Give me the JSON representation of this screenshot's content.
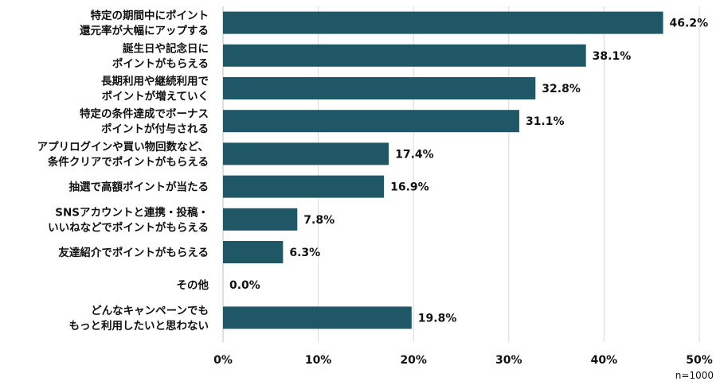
{
  "chart_data": {
    "type": "bar",
    "orientation": "horizontal",
    "bar_color": "#1f5767",
    "categories": [
      [
        "特定の期間中にポイント",
        "還元率が大幅にアップする"
      ],
      [
        "誕生日や記念日に",
        "ポイントがもらえる"
      ],
      [
        "長期利用や継続利用で",
        "ポイントが増えていく"
      ],
      [
        "特定の条件達成でボーナス",
        "ポイントが付与される"
      ],
      [
        "アプリログインや買い物回数など、",
        "条件クリアでポイントがもらえる"
      ],
      [
        "抽選で高額ポイントが当たる"
      ],
      [
        "SNSアカウントと連携・投稿・",
        "いいねなどでポイントがもらえる"
      ],
      [
        "友達紹介でポイントがもらえる"
      ],
      [
        "その他"
      ],
      [
        "どんなキャンペーンでも",
        "もっと利用したいと思わない"
      ]
    ],
    "values": [
      46.2,
      38.1,
      32.8,
      31.1,
      17.4,
      16.9,
      7.8,
      6.3,
      0.0,
      19.8
    ],
    "value_labels": [
      "46.2%",
      "38.1%",
      "32.8%",
      "31.1%",
      "17.4%",
      "16.9%",
      "7.8%",
      "6.3%",
      "0.0%",
      "19.8%"
    ],
    "xlim": [
      0,
      50
    ],
    "xticks": [
      0,
      10,
      20,
      30,
      40,
      50
    ],
    "xtick_labels": [
      "0%",
      "10%",
      "20%",
      "30%",
      "40%",
      "50%"
    ],
    "grid": true,
    "note": "n=1000"
  }
}
